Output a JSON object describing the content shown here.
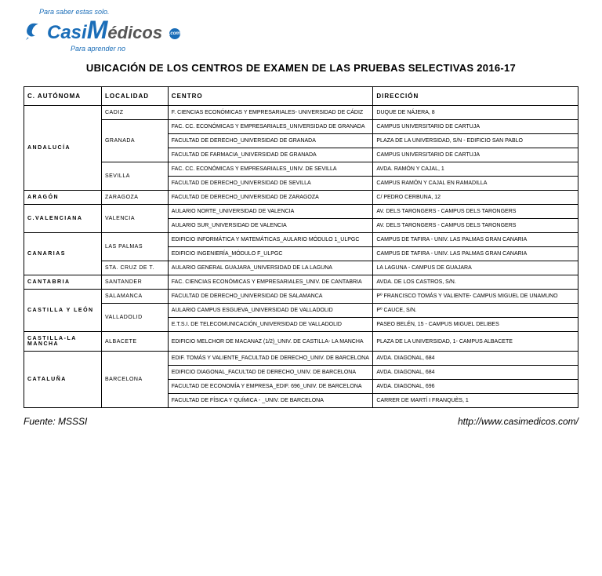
{
  "logo": {
    "top_text": "Para saber estas solo.",
    "main_casi": "Casi",
    "main_m": "M",
    "main_edicos": "édicos",
    "dot_text": ".com",
    "sub_text": "Para aprender no",
    "colors": {
      "blue": "#1a6db8",
      "gray": "#555555"
    }
  },
  "title": "UBICACIÓN DE LOS CENTROS DE EXAMEN DE LAS PRUEBAS SELECTIVAS 2016-17",
  "headers": {
    "c_autonoma": "C. AUTÓNOMA",
    "localidad": "LOCALIDAD",
    "centro": "CENTRO",
    "direccion": "DIRECCIÓN"
  },
  "rows": [
    {
      "region": "ANDALUCÍA",
      "region_span": 6,
      "loc": "CADIZ",
      "loc_span": 1,
      "centro": "F. CIENCIAS ECONÓMICAS Y EMPRESARIALES- UNIVERSIDAD DE CÁDIZ",
      "dir": "DUQUE DE NÁJERA, 8"
    },
    {
      "loc": "GRANADA",
      "loc_span": 3,
      "centro": "FAC. CC. ECONÓMICAS Y EMPRESARIALES_UNIVERSIDAD DE GRANADA",
      "dir": "CAMPUS UNIVERSITARIO DE CARTUJA"
    },
    {
      "centro": "FACULTAD DE DERECHO_UNIVERSIDAD DE GRANADA",
      "dir": "PLAZA DE LA UNIVERSIDAD, S/N - EDIFICIO SAN PABLO"
    },
    {
      "centro": "FACULTAD DE FARMACIA_UNIVERSIDAD DE GRANADA",
      "dir": "CAMPUS UNIVERSITARIO DE CARTUJA"
    },
    {
      "loc": "SEVILLA",
      "loc_span": 2,
      "centro": "FAC. CC. ECONÓMICAS Y EMPRESARIALES_UNIV. DE SEVILLA",
      "dir": "AVDA. RAMÓN Y CAJAL, 1"
    },
    {
      "centro": "FACULTAD DE DERECHO_UNIVERSIDAD DE SEVILLA",
      "dir": "CAMPUS RAMÓN Y CAJAL EN RAMADILLA"
    },
    {
      "region": "ARAGÓN",
      "region_span": 1,
      "loc": "ZARAGOZA",
      "loc_span": 1,
      "centro": "FACULTAD DE DERECHO_UNIVERSIDAD DE ZARAGOZA",
      "dir": "C/ PEDRO CERBUNA, 12"
    },
    {
      "region": "C.VALENCIANA",
      "region_span": 2,
      "loc": "VALENCIA",
      "loc_span": 2,
      "centro": "AULARIO NORTE_UNIVERSIDAD DE VALENCIA",
      "dir": "AV. DELS TARONGERS - CAMPUS DELS TARONGERS"
    },
    {
      "centro": "AULARIO SUR_UNIVERSIDAD DE VALENCIA",
      "dir": "AV. DELS TARONGERS - CAMPUS DELS TARONGERS"
    },
    {
      "region": "CANARIAS",
      "region_span": 3,
      "loc": "LAS PALMAS",
      "loc_span": 2,
      "centro": "EDIFICIO INFORMÁTICA Y MATEMÁTICAS_AULARIO MÓDULO 1_ULPGC",
      "dir": "CAMPUS DE TAFIRA - UNIV. LAS PALMAS GRAN CANARIA"
    },
    {
      "centro": "EDIFICIO INGENIERÍA_MÓDULO F_ULPGC",
      "dir": "CAMPUS DE TAFIRA - UNIV. LAS PALMAS GRAN CANARIA"
    },
    {
      "loc": "STA. CRUZ DE T.",
      "loc_span": 1,
      "centro": "AULARIO GENERAL GUAJARA_UNIVERSIDAD DE LA LAGUNA",
      "dir": "LA LAGUNA - CAMPUS DE GUAJARA"
    },
    {
      "region": "CANTABRIA",
      "region_span": 1,
      "loc": "SANTANDER",
      "loc_span": 1,
      "centro": "FAC. CIENCIAS ECONÓMICAS Y EMPRESARIALES_UNIV. DE CANTABRIA",
      "dir": "AVDA. DE LOS CASTROS, S/N."
    },
    {
      "region": "CASTILLA Y LEÓN",
      "region_span": 3,
      "loc": "SALAMANCA",
      "loc_span": 1,
      "centro": "FACULTAD DE DERECHO_UNIVERSIDAD DE SALAMANCA",
      "dir": "Pº FRANCISCO TOMÁS Y VALIENTE- CAMPUS MIGUEL DE UNAMUNO"
    },
    {
      "loc": "VALLADOLID",
      "loc_span": 2,
      "centro": "AULARIO CAMPUS ESGUEVA_UNIVERSIDAD DE VALLADOLID",
      "dir": "Pº CAUCE, S/N."
    },
    {
      "centro": "E.T.S.I. DE TELECOMUNICACIÓN_UNIVERSIDAD DE VALLADOLID",
      "dir": "PASEO BELÉN, 15 - CAMPUS MIGUEL DELIBES"
    },
    {
      "region": "CASTILLA-LA MANCHA",
      "region_span": 1,
      "loc": "ALBACETE",
      "loc_span": 1,
      "centro": "EDIFICIO MELCHOR DE MACANAZ (1/2)_UNIV. DE CASTILLA- LA MANCHA",
      "dir": "PLAZA DE LA UNIVERSIDAD, 1- CAMPUS ALBACETE"
    },
    {
      "region": "CATALUÑA",
      "region_span": 4,
      "loc": "BARCELONA",
      "loc_span": 4,
      "centro": "EDIF. TOMÁS Y VALIENTE_FACULTAD DE DERECHO_UNIV. DE BARCELONA",
      "dir": "AVDA. DIAGONAL, 684"
    },
    {
      "centro": "EDIFICIO DIAGONAL_FACULTAD DE DERECHO_UNIV. DE BARCELONA",
      "dir": "AVDA. DIAGONAL, 684"
    },
    {
      "centro": "FACULTAD DE ECONOMÍA Y EMPRESA_EDIF. 696_UNIV. DE BARCELONA",
      "dir": "AVDA. DIAGONAL, 696"
    },
    {
      "centro": "FACULTAD DE FÍSICA Y QUÍMICA - _UNIV. DE BARCELONA",
      "dir": "CARRER DE MARTÍ I FRANQUÈS, 1"
    }
  ],
  "footer": {
    "source": "Fuente: MSSSI",
    "url": "http://www.casimedicos.com/"
  },
  "style": {
    "table_border_color": "#000000",
    "header_fontsize": 8,
    "cell_fontsize": 7,
    "title_fontsize": 13
  }
}
